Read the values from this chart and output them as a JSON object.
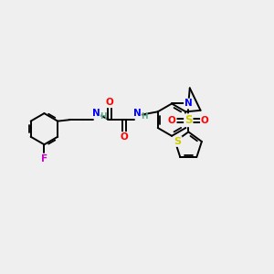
{
  "background_color": "#efefef",
  "bond_color": "#000000",
  "atom_colors": {
    "F": "#cc00cc",
    "O": "#ff0000",
    "N": "#0000ff",
    "S": "#cccc00",
    "H": "#5aaa8a",
    "C": "#000000"
  },
  "figsize": [
    3.0,
    3.0
  ],
  "dpi": 100
}
